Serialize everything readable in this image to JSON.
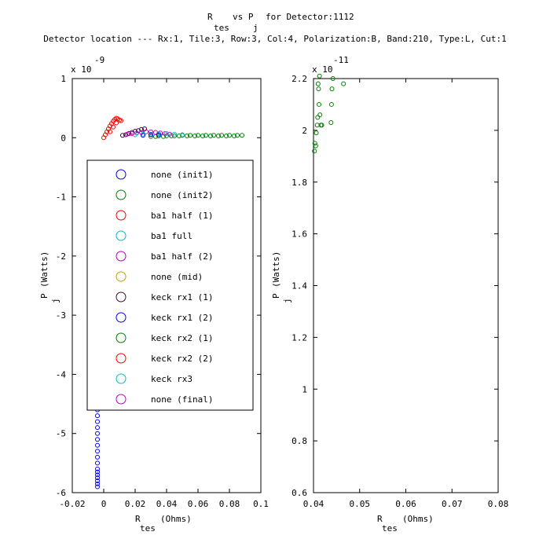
{
  "title": {
    "line1_a": "R",
    "line1_b": "vs P",
    "line1_c": "for Detector:1112",
    "sub_tes": "tes",
    "sub_j": "j",
    "line2": "Detector location --- Rx:1, Tile:3, Row:3, Col:4, Polarization:B, Band:210, Type:L, Cut:1"
  },
  "colors": {
    "blue": "#0000ff",
    "green": "#008000",
    "red": "#ff0000",
    "cyan": "#00bfbf",
    "magenta": "#bf00bf",
    "olive": "#bf9f00",
    "darkpurple": "#3f003f"
  },
  "chart_data": [
    {
      "type": "scatter",
      "xlabel_main": "R",
      "xlabel_sub": "tes",
      "xlabel_unit": "(Ohms)",
      "ylabel_main": "P",
      "ylabel_sub": "j",
      "ylabel_unit": "(Watts)",
      "y_exponent": "x 10",
      "y_exponent_power": "-9",
      "xlim": [
        -0.02,
        0.1
      ],
      "ylim": [
        -6,
        1
      ],
      "x_ticks": [
        "-0.02",
        "0",
        "0.02",
        "0.04",
        "0.06",
        "0.08",
        "0.1"
      ],
      "y_ticks": [
        "-6",
        "-5",
        "-4",
        "-3",
        "-2",
        "-1",
        "0",
        "1"
      ],
      "legend_position": "center",
      "legend": [
        {
          "label": "none (init1)",
          "color": "#0000ff"
        },
        {
          "label": "none (init2)",
          "color": "#008000"
        },
        {
          "label": "ba1 half (1)",
          "color": "#ff0000"
        },
        {
          "label": "ba1 full",
          "color": "#00bfbf"
        },
        {
          "label": "ba1 half (2)",
          "color": "#bf00bf"
        },
        {
          "label": "none (mid)",
          "color": "#bf9f00"
        },
        {
          "label": "keck rx1 (1)",
          "color": "#3f003f"
        },
        {
          "label": "keck rx1 (2)",
          "color": "#0000ff"
        },
        {
          "label": "keck rx2 (1)",
          "color": "#008000"
        },
        {
          "label": "keck rx2 (2)",
          "color": "#ff0000"
        },
        {
          "label": "keck rx3",
          "color": "#00bfbf"
        },
        {
          "label": "none (final)",
          "color": "#bf00bf"
        }
      ],
      "series": [
        {
          "color": "#0000ff",
          "x": [
            -0.004,
            -0.004,
            -0.004,
            -0.004,
            -0.004,
            -0.004,
            -0.004,
            -0.004,
            -0.004,
            -0.004,
            -0.004,
            -0.004,
            -0.004,
            -0.004,
            -0.004,
            -0.004,
            -0.004
          ],
          "y": [
            -4.6,
            -4.7,
            -4.8,
            -4.9,
            -5.0,
            -5.1,
            -5.2,
            -5.3,
            -5.4,
            -5.5,
            -5.6,
            -5.65,
            -5.7,
            -5.75,
            -5.8,
            -5.85,
            -5.9
          ]
        },
        {
          "color": "#008000",
          "x": [
            0.03,
            0.035,
            0.04,
            0.045,
            0.05,
            0.055,
            0.06,
            0.065,
            0.07,
            0.075,
            0.08,
            0.085,
            0.088,
            0.033,
            0.038,
            0.043,
            0.048,
            0.053,
            0.058,
            0.063,
            0.068,
            0.073,
            0.078,
            0.083
          ],
          "y": [
            0.02,
            0.03,
            0.03,
            0.03,
            0.04,
            0.04,
            0.04,
            0.04,
            0.04,
            0.04,
            0.04,
            0.04,
            0.04,
            0.02,
            0.02,
            0.03,
            0.03,
            0.03,
            0.03,
            0.03,
            0.03,
            0.03,
            0.03,
            0.03
          ]
        },
        {
          "color": "#ff0000",
          "x": [
            0.0,
            0.001,
            0.002,
            0.003,
            0.004,
            0.005,
            0.006,
            0.007,
            0.008,
            0.009,
            0.01,
            0.011,
            0.004,
            0.006,
            0.008
          ],
          "y": [
            0.0,
            0.05,
            0.1,
            0.15,
            0.2,
            0.24,
            0.28,
            0.31,
            0.33,
            0.32,
            0.3,
            0.29,
            0.1,
            0.18,
            0.25
          ]
        },
        {
          "color": "#3f003f",
          "x": [
            0.012,
            0.014,
            0.016,
            0.018,
            0.02,
            0.022,
            0.024,
            0.026
          ],
          "y": [
            0.04,
            0.05,
            0.07,
            0.09,
            0.11,
            0.12,
            0.14,
            0.15
          ]
        },
        {
          "color": "#bf00bf",
          "x": [
            0.015,
            0.018,
            0.021,
            0.024,
            0.027,
            0.03,
            0.033,
            0.036,
            0.039,
            0.042
          ],
          "y": [
            0.06,
            0.07,
            0.08,
            0.09,
            0.1,
            0.1,
            0.09,
            0.08,
            0.07,
            0.06
          ]
        },
        {
          "color": "#00bfbf",
          "x": [
            0.02,
            0.025,
            0.03,
            0.035,
            0.04,
            0.045,
            0.05
          ],
          "y": [
            0.05,
            0.06,
            0.06,
            0.07,
            0.07,
            0.06,
            0.05
          ]
        },
        {
          "color": "#0000ff",
          "x": [
            0.025,
            0.03,
            0.035
          ],
          "y": [
            0.04,
            0.05,
            0.05
          ]
        }
      ]
    },
    {
      "type": "scatter",
      "xlabel_main": "R",
      "xlabel_sub": "tes",
      "xlabel_unit": "(Ohms)",
      "ylabel_main": "P",
      "ylabel_sub": "j",
      "ylabel_unit": "(Watts)",
      "y_exponent": "x 10",
      "y_exponent_power": "-11",
      "xlim": [
        0.04,
        0.08
      ],
      "ylim": [
        0.6,
        2.2
      ],
      "x_ticks": [
        "0.04",
        "0.05",
        "0.06",
        "0.07",
        "0.08"
      ],
      "y_ticks": [
        "0.6",
        "0.8",
        "1",
        "1.2",
        "1.4",
        "1.6",
        "1.8",
        "2",
        "2.2"
      ],
      "series": [
        {
          "color": "#008000",
          "x": [
            0.0402,
            0.0403,
            0.0405,
            0.0406,
            0.0408,
            0.0409,
            0.041,
            0.0412,
            0.0414,
            0.0416,
            0.0418,
            0.0411,
            0.0413,
            0.0438,
            0.0439,
            0.044,
            0.0442,
            0.0465
          ],
          "y": [
            1.92,
            1.95,
            1.94,
            1.99,
            2.02,
            2.05,
            2.18,
            2.1,
            2.06,
            2.02,
            2.02,
            2.16,
            2.21,
            2.03,
            2.1,
            2.16,
            2.2,
            2.18
          ]
        }
      ]
    }
  ]
}
